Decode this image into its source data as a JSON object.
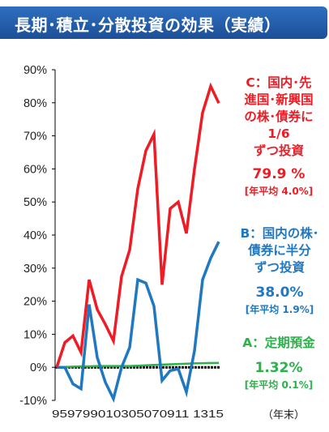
{
  "title": "長期･積立･分散投資の効果（実績）",
  "x_unit": "（年末）",
  "colors": {
    "C": "#ee1c25",
    "B": "#1f78c0",
    "A": "#2db14a",
    "zero_line": "#000000",
    "axis": "#000000"
  },
  "annotations": {
    "C": {
      "label_lines": [
        "C：国内･先",
        "進国･新興国",
        "の株･債券に",
        "1/6",
        "ずつ投資"
      ],
      "value": "79.9 %",
      "avg": "[年平均 4.0%]"
    },
    "B": {
      "label_lines": [
        "B：国内の株･",
        "債券に半分",
        "ずつ投資"
      ],
      "value": "38.0%",
      "avg": "[年平均 1.9%]"
    },
    "A": {
      "label_lines": [
        "A：定期預金"
      ],
      "value": "1.32%",
      "avg": "[年平均 0.1%]"
    }
  },
  "chart_data": {
    "type": "line",
    "x": [
      1995,
      1996,
      1997,
      1998,
      1999,
      2000,
      2001,
      2002,
      2003,
      2004,
      2005,
      2006,
      2007,
      2008,
      2009,
      2010,
      2011,
      2012,
      2013,
      2014,
      2015
    ],
    "x_tick_labels": [
      "95",
      "97",
      "99",
      "01",
      "03",
      "05",
      "07",
      "09",
      "11",
      "13",
      "15"
    ],
    "x_tick_text": "959799010305070911 1315",
    "ylim": [
      -10,
      90
    ],
    "y_tick_labels": [
      "90%",
      "80%",
      "70%",
      "60%",
      "50%",
      "40%",
      "30%",
      "20%",
      "10%",
      "0%",
      "-10%"
    ],
    "series": [
      {
        "name": "C",
        "values": [
          0,
          7.5,
          9.5,
          4.5,
          26.5,
          17.5,
          13,
          8,
          27.5,
          35.5,
          54,
          65.5,
          70.5,
          25,
          48,
          50,
          40.5,
          60,
          77,
          85,
          79.9
        ]
      },
      {
        "name": "B",
        "values": [
          0,
          0,
          -5,
          -6.5,
          19,
          3,
          -4.5,
          -9.5,
          0,
          6,
          26.5,
          25.5,
          18.5,
          -4,
          -1,
          -0.5,
          -7.5,
          5,
          26.5,
          33,
          38.0
        ]
      },
      {
        "name": "A",
        "values": [
          0,
          0.1,
          0.2,
          0.3,
          0.3,
          0.4,
          0.4,
          0.4,
          0.4,
          0.4,
          0.5,
          0.6,
          0.7,
          0.8,
          0.9,
          1.0,
          1.1,
          1.2,
          1.25,
          1.3,
          1.32
        ]
      }
    ]
  }
}
